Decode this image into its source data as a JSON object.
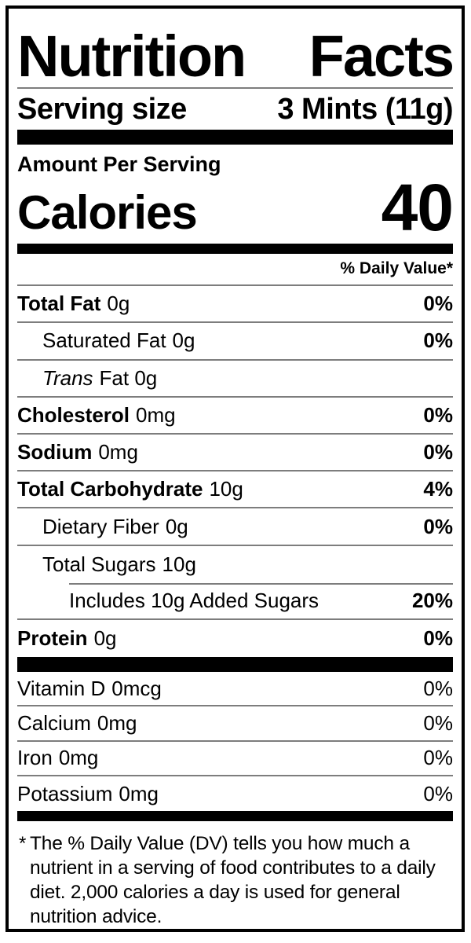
{
  "label": {
    "title": "Nutrition Facts",
    "serving": {
      "label": "Serving size",
      "value": "3 Mints (11g)"
    },
    "calories": {
      "header": "Amount Per Serving",
      "label": "Calories",
      "value": "40"
    },
    "daily_value_header": "% Daily Value*",
    "nutrients": [
      {
        "name": "Total Fat",
        "amount": "0g",
        "dv": "0%"
      },
      {
        "name": "Saturated Fat",
        "amount": "0g",
        "dv": "0%"
      },
      {
        "name": "Trans",
        "amount": "Fat 0g",
        "dv": ""
      },
      {
        "name": "Cholesterol",
        "amount": "0mg",
        "dv": "0%"
      },
      {
        "name": "Sodium",
        "amount": "0mg",
        "dv": "0%"
      },
      {
        "name": "Total Carbohydrate",
        "amount": "10g",
        "dv": "4%"
      },
      {
        "name": "Dietary Fiber",
        "amount": "0g",
        "dv": "0%"
      },
      {
        "name": "Total Sugars",
        "amount": "10g",
        "dv": ""
      },
      {
        "name": "Includes 10g Added Sugars",
        "amount": "",
        "dv": "20%"
      },
      {
        "name": "Protein",
        "amount": "0g",
        "dv": "0%"
      }
    ],
    "vitamins": [
      {
        "name": "Vitamin D",
        "amount": "0mcg",
        "dv": "0%"
      },
      {
        "name": "Calcium",
        "amount": "0mg",
        "dv": "0%"
      },
      {
        "name": "Iron",
        "amount": "0mg",
        "dv": "0%"
      },
      {
        "name": "Potassium",
        "amount": "0mg",
        "dv": "0%"
      }
    ],
    "footnote": {
      "asterisk": "*",
      "text": "The % Daily Value (DV) tells you how much a nutrient in a serving of food contributes to a daily diet. 2,000 calories a day is used for general nutrition advice."
    }
  },
  "colors": {
    "ink": "#000000",
    "paper": "#ffffff",
    "divider": "#7d7d7d"
  }
}
